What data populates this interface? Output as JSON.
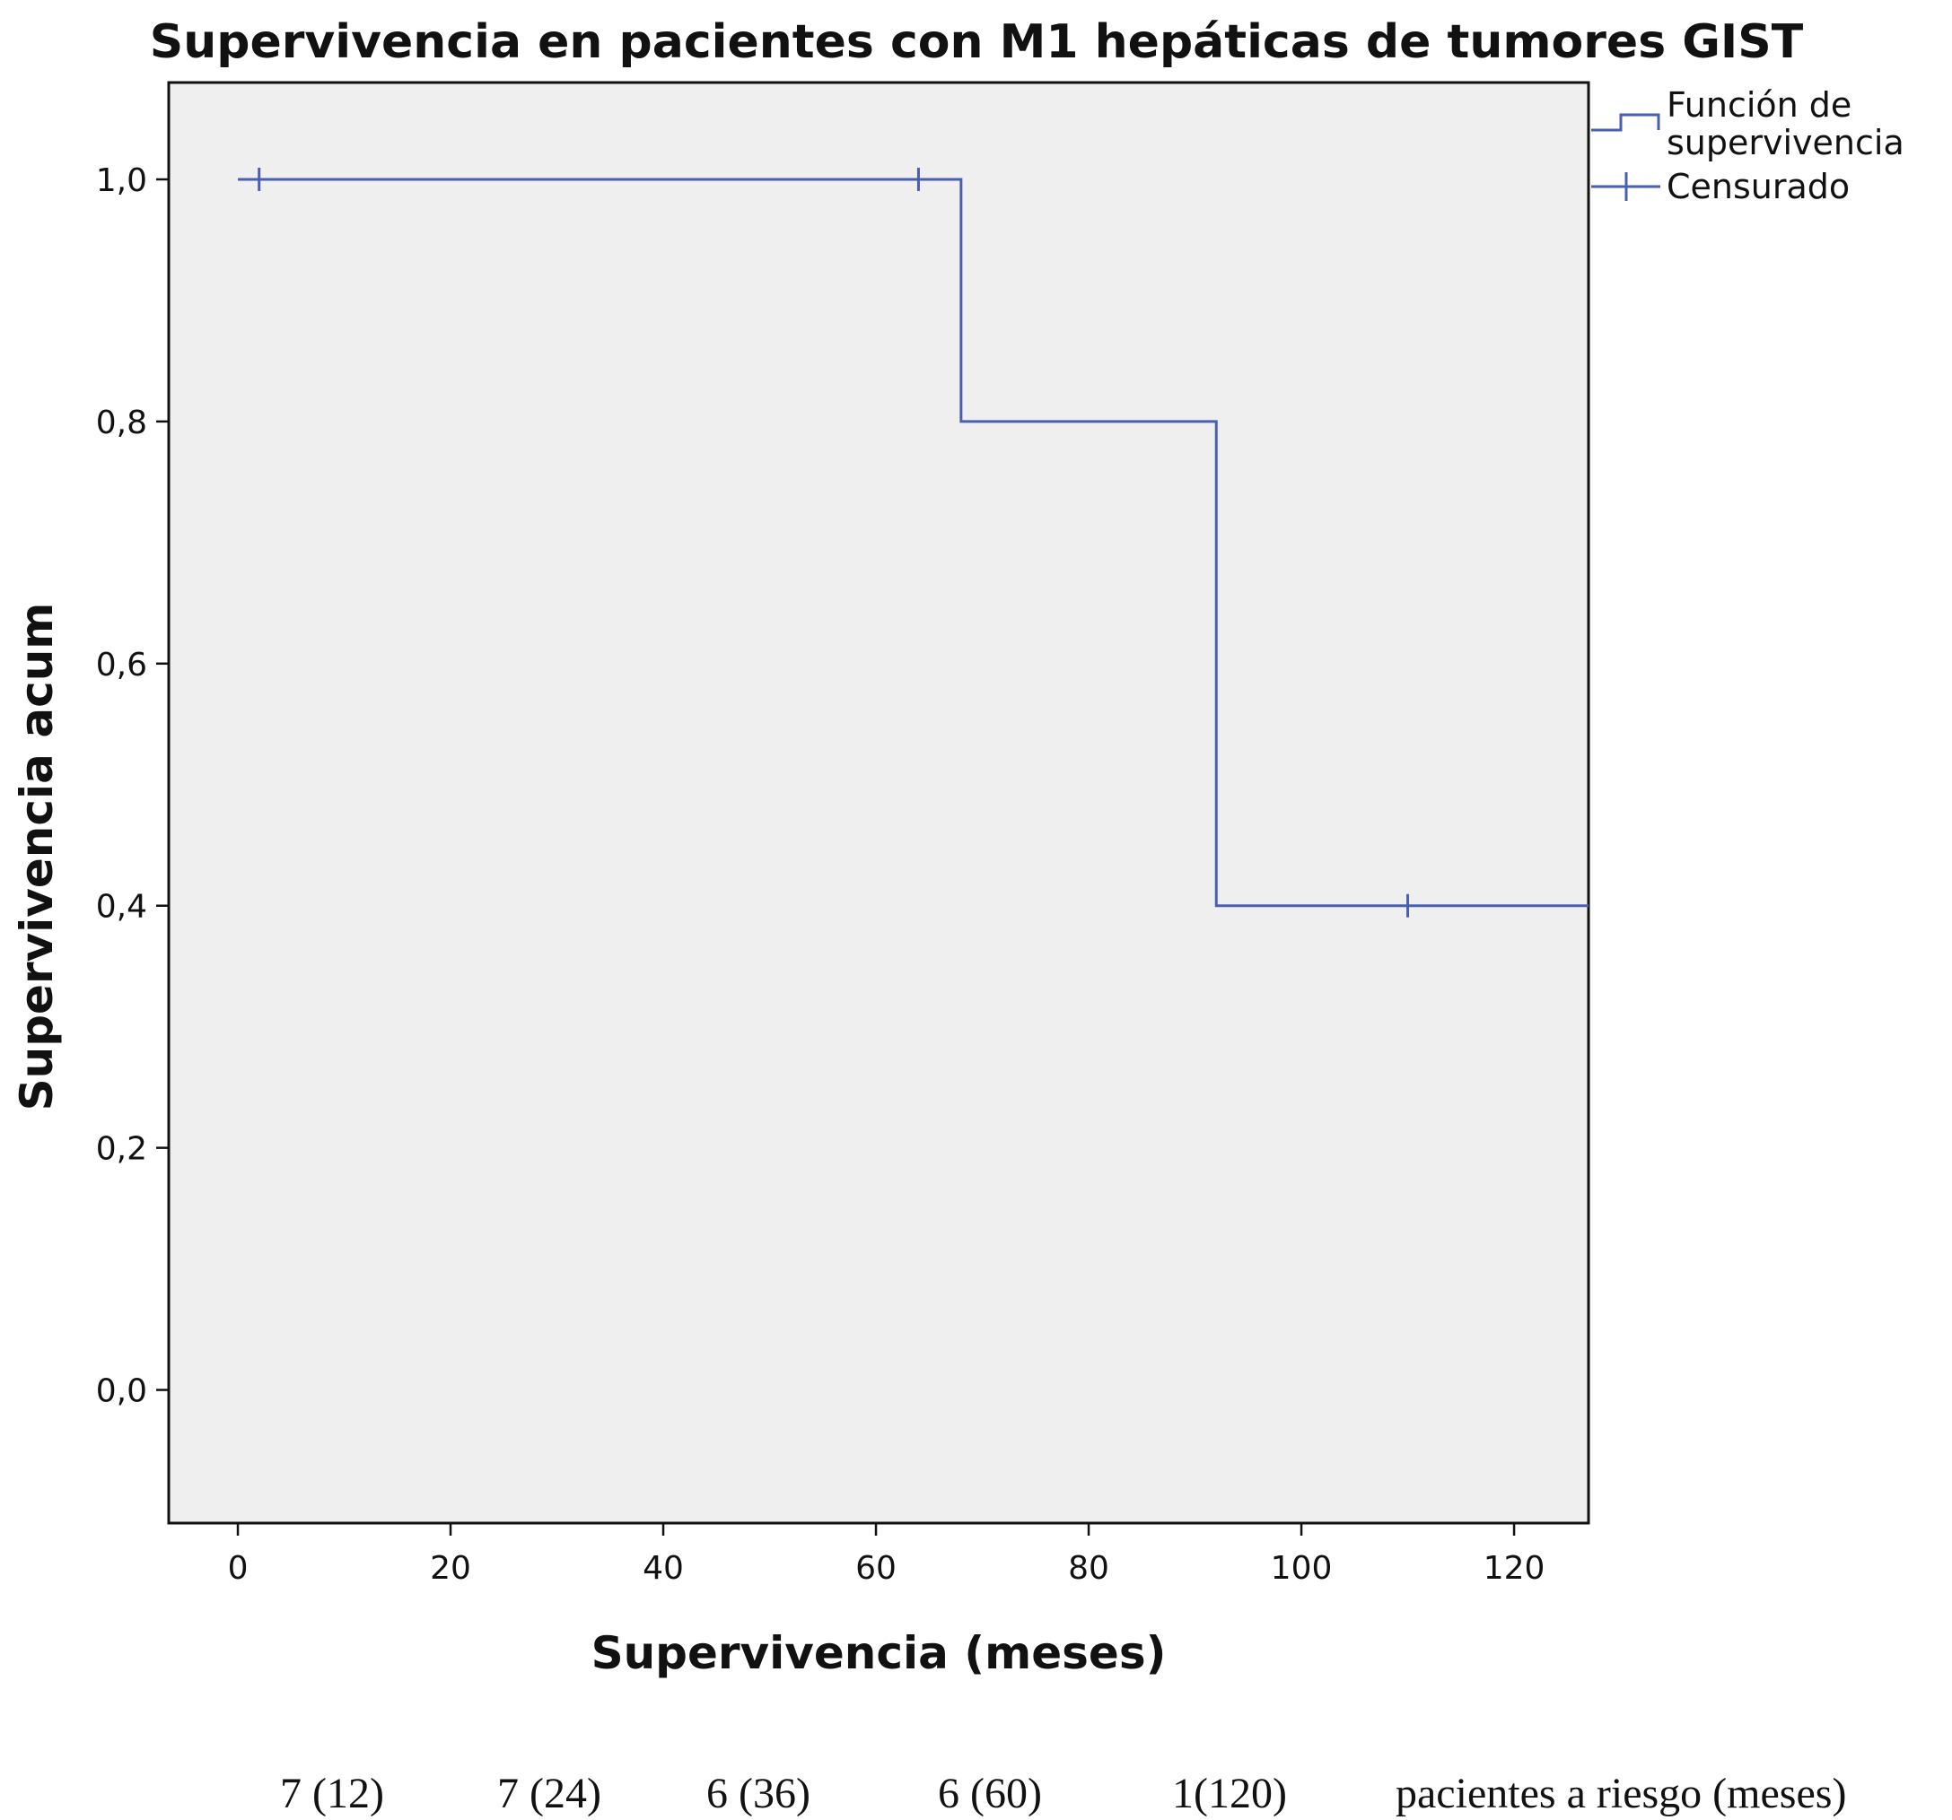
{
  "chart_data": {
    "type": "line",
    "title": "Supervivencia en pacientes con M1 hepáticas de tumores GIST",
    "xlabel": "Supervivencia (meses)",
    "ylabel": "Supervivencia acum",
    "xlim": [
      -6.5,
      127
    ],
    "ylim": [
      -0.11,
      1.08
    ],
    "xticks": [
      0,
      20,
      40,
      60,
      80,
      100,
      120
    ],
    "xtick_labels": [
      "0",
      "20",
      "40",
      "60",
      "80",
      "100",
      "120"
    ],
    "yticks": [
      0.0,
      0.2,
      0.4,
      0.6,
      0.8,
      1.0
    ],
    "ytick_labels": [
      "0,0",
      "0,2",
      "0,4",
      "0,6",
      "0,8",
      "1,0"
    ],
    "grid": false,
    "legend_position": "right",
    "legend": [
      {
        "label_lines": [
          "Función de",
          "supervivencia"
        ],
        "symbol": "step"
      },
      {
        "label_lines": [
          "Censurado"
        ],
        "symbol": "censor"
      }
    ],
    "colors": {
      "line": "#4a5fb0",
      "plot_bg": "#efefef"
    },
    "series": [
      {
        "name": "Función de supervivencia",
        "step_points": [
          [
            0,
            1.0
          ],
          [
            68,
            1.0
          ],
          [
            68,
            0.8
          ],
          [
            92,
            0.8
          ],
          [
            92,
            0.4
          ],
          [
            127,
            0.4
          ]
        ]
      },
      {
        "name": "Censurado",
        "points": [
          [
            2,
            1.0
          ],
          [
            64,
            1.0
          ],
          [
            110,
            0.4
          ]
        ]
      }
    ],
    "at_risk": {
      "values": [
        "7 (12)",
        "7 (24)",
        "6 (36)",
        "6 (60)",
        "1(120)"
      ],
      "label": "pacientes a riesgo (meses)"
    }
  }
}
